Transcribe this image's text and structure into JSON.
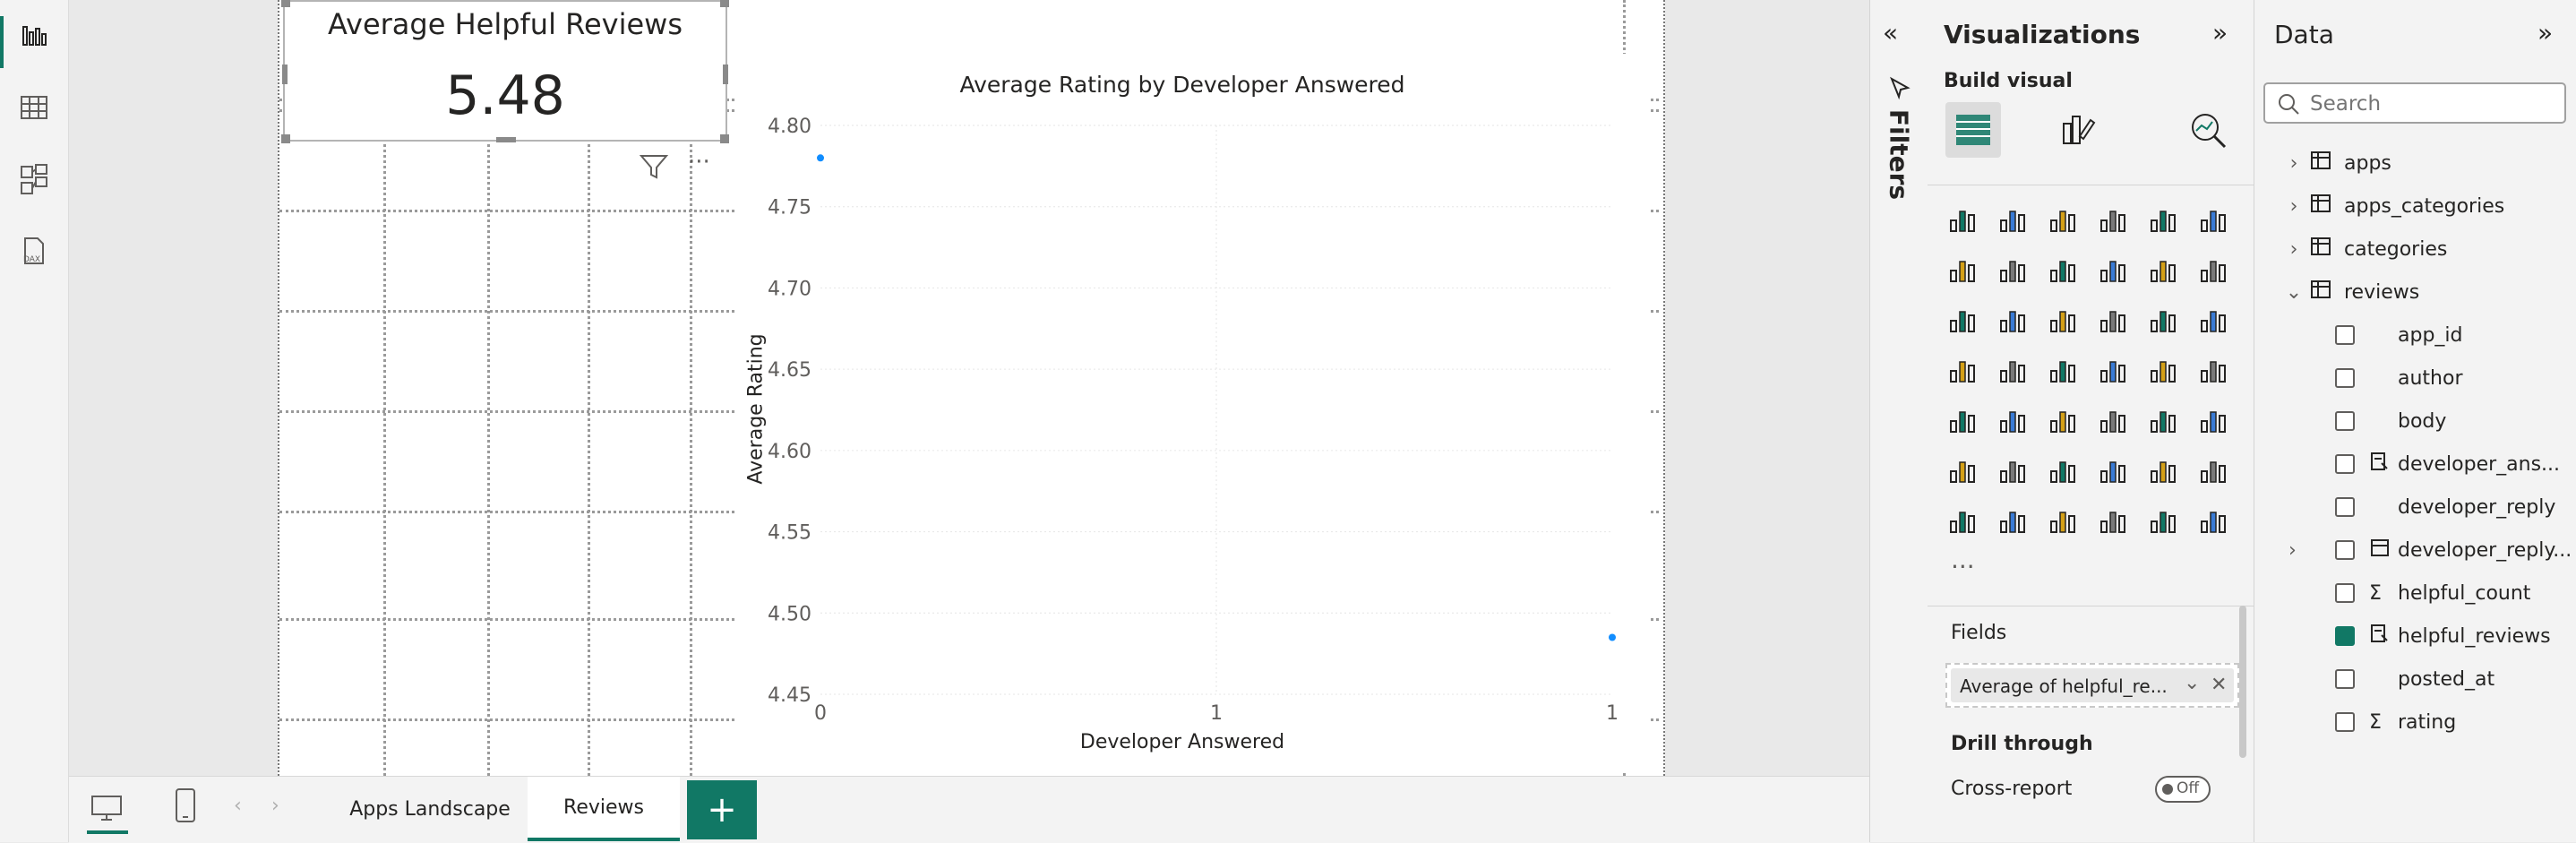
{
  "rail": {
    "icons": [
      "report-view-icon",
      "table-view-icon",
      "model-view-icon",
      "dax-query-view-icon"
    ]
  },
  "card": {
    "title": "Average Helpful Reviews",
    "value": "5.48"
  },
  "chart_data": {
    "type": "scatter",
    "title": "Average Rating by Developer Answered",
    "xlabel": "Developer Answered",
    "ylabel": "Average Rating",
    "x_ticks": [
      "0",
      "1",
      "1"
    ],
    "y_ticks": [
      "4.80",
      "4.75",
      "4.70",
      "4.65",
      "4.60",
      "4.55",
      "4.50",
      "4.45"
    ],
    "xlim": [
      0,
      1
    ],
    "ylim": [
      4.45,
      4.8
    ],
    "grid": true,
    "points": [
      {
        "x": 0,
        "y": 4.78
      },
      {
        "x": 1,
        "y": 4.485
      }
    ]
  },
  "pages": {
    "tabs": [
      "Apps Landscape",
      "Reviews"
    ],
    "active": "Reviews",
    "add_label": "+"
  },
  "filters": {
    "label": "Filters"
  },
  "visualizations": {
    "title": "Visualizations",
    "build_visual": "Build visual",
    "more": "···",
    "fields_label": "Fields",
    "field_well_value": "Average of helpful_re...",
    "drill_through": "Drill through",
    "cross_report": "Cross-report",
    "toggle_state": "Off",
    "accent": "#117865"
  },
  "data": {
    "title": "Data",
    "search_placeholder": "Search",
    "tables": [
      "apps",
      "apps_categories",
      "categories",
      "reviews"
    ],
    "fields": [
      {
        "name": "app_id",
        "icon": "",
        "checked": false
      },
      {
        "name": "author",
        "icon": "",
        "checked": false
      },
      {
        "name": "body",
        "icon": "",
        "checked": false
      },
      {
        "name": "developer_ans...",
        "icon": "measure-icon",
        "checked": false
      },
      {
        "name": "developer_reply",
        "icon": "",
        "checked": false
      },
      {
        "name": "developer_reply...",
        "icon": "calendar-icon",
        "checked": false
      },
      {
        "name": "helpful_count",
        "icon": "sigma-icon",
        "checked": false
      },
      {
        "name": "helpful_reviews",
        "icon": "measure-icon",
        "checked": true
      },
      {
        "name": "posted_at",
        "icon": "",
        "checked": false
      },
      {
        "name": "rating",
        "icon": "sigma-icon",
        "checked": false
      }
    ]
  }
}
